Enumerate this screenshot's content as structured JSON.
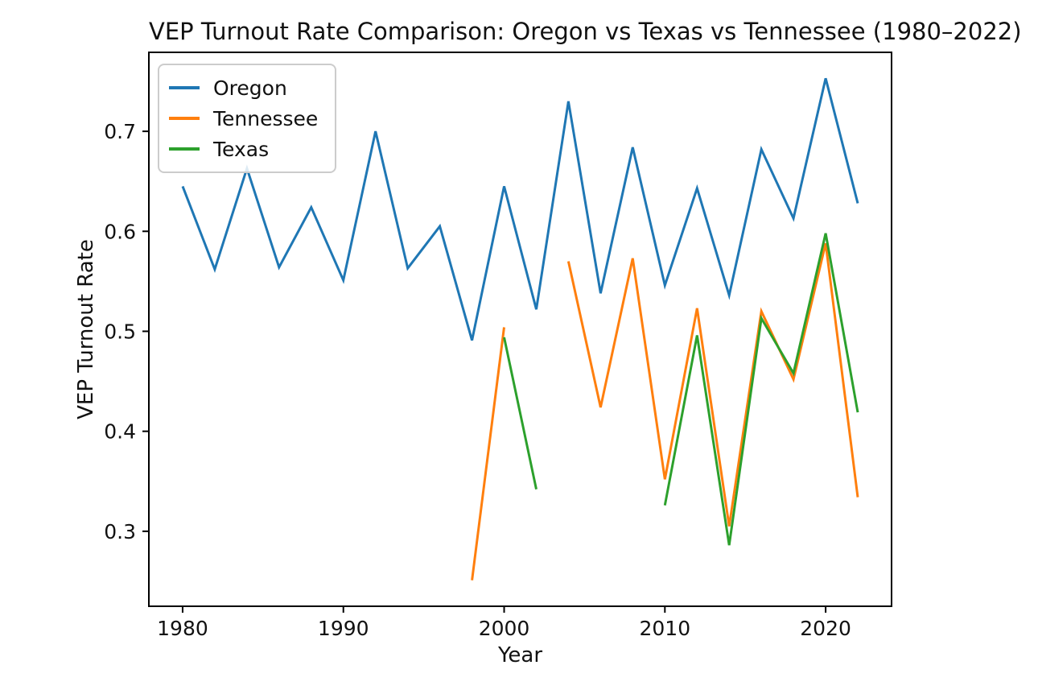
{
  "chart_data": {
    "type": "line",
    "title": "VEP Turnout Rate Comparison: Oregon vs Texas vs Tennessee (1980–2022)",
    "xlabel": "Year",
    "ylabel": "VEP Turnout Rate",
    "grid": false,
    "legend_position": "upper left",
    "xlim": [
      1977.9,
      2024.1
    ],
    "ylim": [
      0.225,
      0.779
    ],
    "xticks": [
      1980,
      1990,
      2000,
      2010,
      2020
    ],
    "yticks": [
      0.3,
      0.4,
      0.5,
      0.6,
      0.7
    ],
    "ytick_labels": [
      "0.3",
      "0.4",
      "0.5",
      "0.6",
      "0.7"
    ],
    "x": [
      1980,
      1982,
      1984,
      1986,
      1988,
      1990,
      1992,
      1994,
      1996,
      1998,
      2000,
      2002,
      2004,
      2006,
      2008,
      2010,
      2012,
      2014,
      2016,
      2018,
      2020,
      2022
    ],
    "series": [
      {
        "name": "Oregon",
        "color": "#1f77b4",
        "values": [
          0.645,
          0.562,
          0.663,
          0.564,
          0.624,
          0.551,
          0.7,
          0.563,
          0.605,
          0.491,
          0.645,
          0.522,
          0.73,
          0.538,
          0.684,
          0.546,
          0.643,
          0.536,
          0.682,
          0.613,
          0.753,
          0.628
        ]
      },
      {
        "name": "Tennessee",
        "color": "#ff7f0e",
        "values": [
          null,
          null,
          null,
          null,
          null,
          null,
          null,
          null,
          null,
          0.251,
          0.504,
          null,
          0.57,
          0.424,
          0.573,
          0.352,
          0.523,
          0.305,
          0.52,
          0.452,
          0.588,
          0.334
        ]
      },
      {
        "name": "Texas",
        "color": "#2ca02c",
        "values": [
          null,
          null,
          null,
          null,
          null,
          null,
          null,
          null,
          null,
          null,
          0.494,
          0.342,
          null,
          null,
          null,
          0.326,
          0.496,
          0.286,
          0.513,
          0.458,
          0.598,
          0.419
        ]
      }
    ]
  }
}
